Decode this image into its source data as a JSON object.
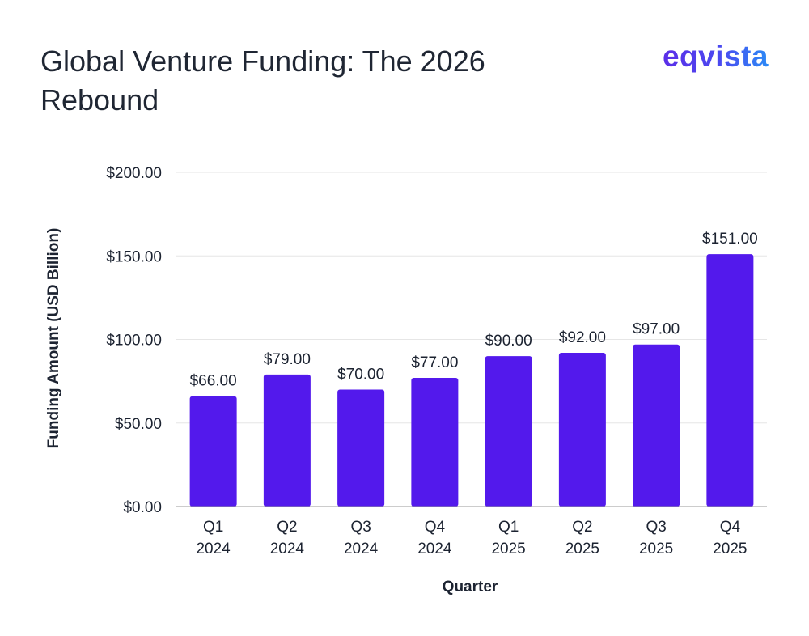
{
  "brand": {
    "logo_text": "eqvista"
  },
  "chart_data": {
    "type": "bar",
    "title": "Global Venture Funding: The 2026 Rebound",
    "xlabel": "Quarter",
    "ylabel": "Funding Amount (USD Billion)",
    "categories": [
      [
        "Q1",
        "2024"
      ],
      [
        "Q2",
        "2024"
      ],
      [
        "Q3",
        "2024"
      ],
      [
        "Q4",
        "2024"
      ],
      [
        "Q1",
        "2025"
      ],
      [
        "Q2",
        "2025"
      ],
      [
        "Q3",
        "2025"
      ],
      [
        "Q4",
        "2025"
      ]
    ],
    "values": [
      66,
      79,
      70,
      77,
      90,
      92,
      97,
      151
    ],
    "data_labels": [
      "$66.00",
      "$79.00",
      "$70.00",
      "$77.00",
      "$90.00",
      "$92.00",
      "$97.00",
      "$151.00"
    ],
    "yticks": [
      0,
      50,
      100,
      150,
      200
    ],
    "ytick_labels": [
      "$0.00",
      "$50.00",
      "$100.00",
      "$150.00",
      "$200.00"
    ],
    "ylim": [
      0,
      200
    ],
    "grid": true,
    "legend": "none",
    "colors": {
      "bar": "#5319ec",
      "grid": "#e6e6e6",
      "axis": "#9a9a9a"
    }
  }
}
